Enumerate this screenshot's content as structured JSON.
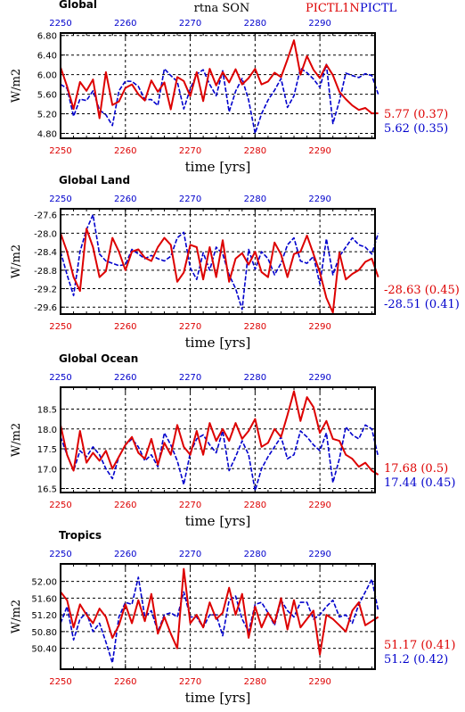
{
  "header": {
    "title": "rtna SON",
    "series_label_1": "PICTL1N",
    "series_label_2": "PICTL"
  },
  "colors": {
    "red": "#dd0000",
    "blue": "#0000cc",
    "grid": "#000000"
  },
  "chart_data": [
    {
      "type": "line",
      "title": "Global",
      "xlabel": "time [yrs]",
      "ylabel": "W/m2",
      "xlim": [
        2250,
        2298.5
      ],
      "ylim": [
        4.7,
        6.85
      ],
      "yticks": [
        "4.80",
        "5.20",
        "5.60",
        "6.00",
        "6.40",
        "6.80"
      ],
      "ytick_values": [
        4.8,
        5.2,
        5.6,
        6.0,
        6.4,
        6.8
      ],
      "xticks": [
        "2250",
        "2260",
        "2270",
        "2280",
        "2290"
      ],
      "xtick_values": [
        2250,
        2260,
        2270,
        2280,
        2290
      ],
      "stats": {
        "red": "5.77 (0.37)",
        "blue": "5.62 (0.35)"
      },
      "x_start": 2250,
      "series": [
        {
          "color": "red",
          "values": [
            6.15,
            5.76,
            5.3,
            5.85,
            5.67,
            5.9,
            5.11,
            6.05,
            5.38,
            5.45,
            5.73,
            5.8,
            5.6,
            5.47,
            5.88,
            5.65,
            5.84,
            5.29,
            5.95,
            5.87,
            5.56,
            6.05,
            5.46,
            6.12,
            5.78,
            6.05,
            5.84,
            6.11,
            5.8,
            5.93,
            6.12,
            5.8,
            5.86,
            6.04,
            5.95,
            6.31,
            6.7,
            6.0,
            6.38,
            6.1,
            5.93,
            6.2,
            5.99,
            5.65,
            5.5,
            5.37,
            5.28,
            5.32,
            5.21,
            5.21
          ]
        },
        {
          "color": "blue",
          "values": [
            5.8,
            5.72,
            5.15,
            5.5,
            5.47,
            5.67,
            5.28,
            5.18,
            4.96,
            5.67,
            5.87,
            5.86,
            5.76,
            5.49,
            5.49,
            5.37,
            6.12,
            5.98,
            5.86,
            5.3,
            5.71,
            6.01,
            6.1,
            5.8,
            5.57,
            6.08,
            5.24,
            5.66,
            5.92,
            5.48,
            4.8,
            5.2,
            5.48,
            5.68,
            5.92,
            5.33,
            5.57,
            6.13,
            6.04,
            5.91,
            5.74,
            6.21,
            5.0,
            5.46,
            6.03,
            5.98,
            5.94,
            6.02,
            5.98,
            5.6
          ]
        }
      ]
    },
    {
      "type": "line",
      "title": "Global Land",
      "xlabel": "time [yrs]",
      "ylabel": "W/m2",
      "xlim": [
        2250,
        2298.5
      ],
      "ylim": [
        -29.75,
        -27.47
      ],
      "yticks": [
        "-29.6",
        "-29.2",
        "-28.8",
        "-28.4",
        "-28.0",
        "-27.6"
      ],
      "ytick_values": [
        -29.6,
        -29.2,
        -28.8,
        -28.4,
        -28.0,
        -27.6
      ],
      "xticks": [
        "2250",
        "2260",
        "2270",
        "2280",
        "2290"
      ],
      "xtick_values": [
        2250,
        2260,
        2270,
        2280,
        2290
      ],
      "stats": {
        "red": "-28.63 (0.45)",
        "blue": "-28.51 (0.41)"
      },
      "x_start": 2250,
      "series": [
        {
          "color": "red",
          "values": [
            -28.0,
            -28.4,
            -28.95,
            -29.25,
            -27.9,
            -28.3,
            -28.95,
            -28.82,
            -28.1,
            -28.4,
            -28.8,
            -28.4,
            -28.35,
            -28.53,
            -28.6,
            -28.3,
            -28.1,
            -28.25,
            -29.05,
            -28.85,
            -28.25,
            -28.3,
            -29.0,
            -28.3,
            -28.95,
            -28.15,
            -29.05,
            -28.55,
            -28.43,
            -28.68,
            -28.4,
            -28.84,
            -28.95,
            -28.2,
            -28.46,
            -28.95,
            -28.45,
            -28.4,
            -28.05,
            -28.45,
            -28.85,
            -29.4,
            -29.72,
            -28.42,
            -29.0,
            -28.88,
            -28.8,
            -28.62,
            -28.55,
            -28.95
          ]
        },
        {
          "color": "blue",
          "values": [
            -28.4,
            -28.9,
            -29.35,
            -28.4,
            -27.92,
            -27.6,
            -28.45,
            -28.6,
            -28.65,
            -28.7,
            -28.68,
            -28.35,
            -28.45,
            -28.55,
            -28.48,
            -28.55,
            -28.6,
            -28.5,
            -28.1,
            -27.98,
            -28.75,
            -29.0,
            -28.42,
            -28.8,
            -28.3,
            -28.45,
            -28.9,
            -29.2,
            -29.65,
            -28.35,
            -28.78,
            -28.4,
            -28.55,
            -28.9,
            -28.65,
            -28.25,
            -28.1,
            -28.6,
            -28.65,
            -28.5,
            -29.1,
            -28.12,
            -28.9,
            -28.5,
            -28.3,
            -28.1,
            -28.25,
            -28.3,
            -28.45,
            -28.0
          ]
        }
      ]
    },
    {
      "type": "line",
      "title": "Global Ocean",
      "xlabel": "time [yrs]",
      "ylabel": "W/m2",
      "xlim": [
        2250,
        2298.5
      ],
      "ylim": [
        16.4,
        19.05
      ],
      "yticks": [
        "16.5",
        "17.0",
        "17.5",
        "18.0",
        "18.5"
      ],
      "ytick_values": [
        16.5,
        17.0,
        17.5,
        18.0,
        18.5
      ],
      "xticks": [
        "2250",
        "2260",
        "2270",
        "2280",
        "2290"
      ],
      "xtick_values": [
        2250,
        2260,
        2270,
        2280,
        2290
      ],
      "stats": {
        "red": "17.68 (0.5)",
        "blue": "17.44 (0.45)"
      },
      "x_start": 2250,
      "series": [
        {
          "color": "red",
          "values": [
            18.1,
            17.35,
            16.95,
            17.95,
            17.15,
            17.4,
            17.2,
            17.45,
            17.0,
            17.3,
            17.6,
            17.8,
            17.4,
            17.25,
            17.75,
            17.1,
            17.65,
            17.35,
            18.1,
            17.55,
            17.35,
            17.95,
            17.35,
            18.15,
            17.7,
            18.0,
            17.7,
            18.15,
            17.75,
            17.95,
            18.25,
            17.55,
            17.65,
            18.0,
            17.8,
            18.35,
            18.95,
            18.2,
            18.8,
            18.55,
            17.9,
            18.2,
            17.75,
            17.7,
            17.35,
            17.25,
            17.05,
            17.15,
            16.95,
            16.85
          ]
        },
        {
          "color": "blue",
          "values": [
            17.8,
            17.35,
            16.95,
            17.45,
            17.3,
            17.55,
            17.35,
            17.0,
            16.75,
            17.3,
            17.6,
            17.75,
            17.55,
            17.2,
            17.35,
            17.05,
            17.9,
            17.6,
            17.2,
            16.6,
            17.4,
            17.75,
            17.85,
            17.6,
            17.4,
            17.95,
            16.95,
            17.3,
            17.7,
            17.35,
            16.45,
            17.0,
            17.3,
            17.55,
            17.8,
            17.25,
            17.35,
            17.95,
            17.8,
            17.6,
            17.45,
            17.9,
            16.65,
            17.25,
            18.05,
            17.85,
            17.75,
            18.1,
            18.0,
            17.3
          ]
        }
      ]
    },
    {
      "type": "line",
      "title": "Tropics",
      "xlabel": "time [yrs]",
      "ylabel": "W/m2",
      "xlim": [
        2250,
        2298.5
      ],
      "ylim": [
        49.9,
        52.42
      ],
      "yticks": [
        "50.40",
        "50.80",
        "51.20",
        "51.60",
        "52.00"
      ],
      "ytick_values": [
        50.4,
        50.8,
        51.2,
        51.6,
        52.0
      ],
      "xticks": [
        "2250",
        "2260",
        "2270",
        "2280",
        "2290"
      ],
      "xtick_values": [
        2250,
        2260,
        2270,
        2280,
        2290
      ],
      "stats": {
        "red": "51.17 (0.41)",
        "blue": "51.2 (0.42)"
      },
      "x_start": 2250,
      "series": [
        {
          "color": "red",
          "values": [
            51.75,
            51.55,
            50.9,
            51.45,
            51.2,
            51.0,
            51.35,
            51.15,
            50.65,
            50.95,
            51.45,
            51.0,
            51.55,
            51.05,
            51.7,
            50.75,
            51.15,
            50.75,
            50.4,
            52.3,
            51.0,
            51.2,
            50.9,
            51.5,
            51.1,
            51.25,
            51.85,
            51.2,
            51.7,
            50.65,
            51.4,
            50.9,
            51.25,
            51.0,
            51.6,
            50.85,
            51.55,
            50.9,
            51.1,
            51.3,
            50.25,
            51.2,
            51.1,
            50.95,
            50.8,
            51.3,
            51.5,
            50.95,
            51.05,
            51.15
          ]
        },
        {
          "color": "blue",
          "values": [
            51.0,
            51.4,
            50.6,
            51.1,
            51.25,
            50.8,
            51.0,
            50.55,
            50.05,
            51.15,
            51.5,
            51.45,
            52.1,
            51.15,
            51.3,
            50.8,
            51.2,
            51.25,
            51.15,
            51.75,
            51.15,
            51.15,
            50.9,
            51.2,
            51.2,
            50.7,
            51.55,
            51.65,
            51.1,
            50.8,
            51.45,
            51.5,
            51.25,
            50.95,
            51.55,
            51.3,
            51.15,
            51.5,
            51.5,
            51.1,
            51.2,
            51.4,
            51.55,
            51.15,
            51.2,
            51.0,
            51.45,
            51.75,
            52.05,
            51.3
          ]
        }
      ]
    }
  ]
}
